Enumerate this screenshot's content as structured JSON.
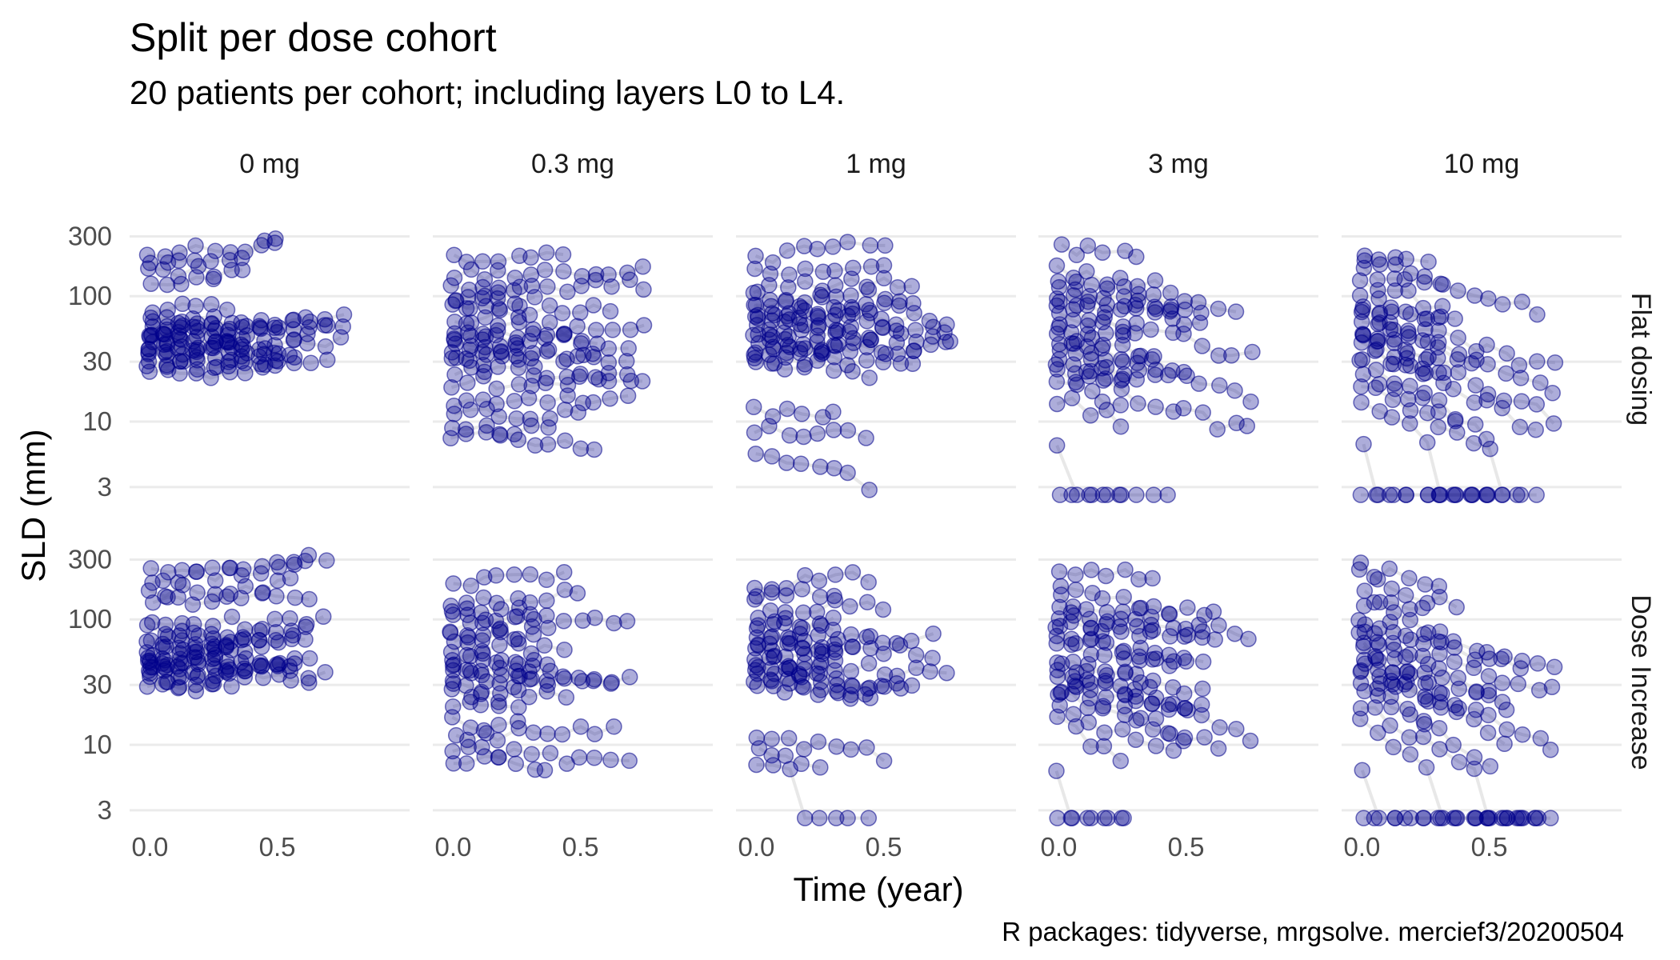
{
  "title": "Split per dose cohort",
  "subtitle": "20 patients per cohort; including layers L0 to L4.",
  "caption": "R packages: tidyverse, mrgsolve. mercief3/20200504",
  "colors": {
    "point": "#00008B",
    "line": "#d9d9d9",
    "grid": "#ebebeb"
  },
  "chart_data": {
    "type": "scatter",
    "facets": {
      "columns": [
        "0 mg",
        "0.3 mg",
        "1 mg",
        "3 mg",
        "10 mg"
      ],
      "rows": [
        "Flat dosing",
        "Dose Increase"
      ]
    },
    "xlabel": "Time (year)",
    "ylabel": "SLD (mm)",
    "x_ticks": [
      0.0,
      0.5
    ],
    "x_tick_labels": [
      "0.0",
      "0.5"
    ],
    "xlim": [
      -0.08,
      1.02
    ],
    "y_scale": "log10",
    "y_ticks": [
      3,
      10,
      30,
      100,
      300
    ],
    "y_tick_labels": [
      "3",
      "10",
      "30",
      "100",
      "300"
    ],
    "ylim": [
      1.9,
      520
    ],
    "grid": true,
    "patient_series_per_panel": 20,
    "visit_times": [
      0.0,
      0.06,
      0.12,
      0.18,
      0.25,
      0.31,
      0.37,
      0.44,
      0.5,
      0.56,
      0.62,
      0.69,
      0.75,
      0.81,
      0.87,
      0.93
    ],
    "panels": [
      {
        "column": "0 mg",
        "row": "Flat dosing",
        "baseline_sld": [
          220,
          180,
          150,
          130,
          80,
          65,
          60,
          55,
          52,
          50,
          48,
          45,
          42,
          40,
          38,
          35,
          33,
          30,
          28,
          25
        ],
        "change_per_year": [
          0.3,
          0.6,
          0.2,
          0.1,
          0.0,
          -0.1,
          0.05,
          0.2,
          -0.05,
          0.1,
          0.0,
          -0.1,
          0.15,
          0.05,
          -0.2,
          0.0,
          0.1,
          -0.05,
          0.05,
          0.0
        ],
        "floor": null
      },
      {
        "column": "0.3 mg",
        "row": "Flat dosing",
        "baseline_sld": [
          190,
          150,
          120,
          100,
          90,
          80,
          65,
          55,
          50,
          45,
          40,
          36,
          33,
          30,
          25,
          20,
          15,
          12,
          9,
          8
        ],
        "change_per_year": [
          0.5,
          0.1,
          0.0,
          0.2,
          0.1,
          -0.1,
          0.3,
          0.0,
          -0.1,
          0.1,
          0.0,
          -0.2,
          0.1,
          0.0,
          -0.1,
          0.2,
          0.1,
          -0.2,
          -0.3,
          -0.4
        ],
        "floor": null
      },
      {
        "column": "1 mg",
        "row": "Flat dosing",
        "baseline_sld": [
          200,
          160,
          120,
          100,
          90,
          80,
          70,
          65,
          60,
          55,
          50,
          45,
          40,
          38,
          35,
          33,
          30,
          12,
          9,
          6
        ],
        "change_per_year": [
          0.6,
          0.3,
          0.1,
          0.0,
          -0.1,
          -0.2,
          0.2,
          0.0,
          -0.1,
          -0.2,
          0.1,
          -0.3,
          0.0,
          -0.2,
          0.1,
          -0.1,
          -0.4,
          -0.2,
          -0.5,
          -1.5
        ],
        "floor": null
      },
      {
        "column": "3 mg",
        "row": "Flat dosing",
        "baseline_sld": [
          250,
          160,
          140,
          120,
          100,
          90,
          80,
          70,
          60,
          50,
          45,
          40,
          35,
          30,
          28,
          25,
          20,
          15,
          6,
          5
        ],
        "change_per_year": [
          -0.6,
          -0.8,
          -1.0,
          -0.7,
          -0.9,
          -0.5,
          -1.2,
          -0.8,
          -0.6,
          -1.0,
          -1.4,
          -0.9,
          -1.1,
          -1.3,
          -0.7,
          -1.5,
          -1.2,
          -1.6,
          -3.0,
          -3.5
        ],
        "floor": 2.6
      },
      {
        "column": "10 mg",
        "row": "Flat dosing",
        "baseline_sld": [
          230,
          220,
          160,
          140,
          100,
          90,
          80,
          70,
          60,
          55,
          50,
          45,
          40,
          35,
          30,
          25,
          20,
          15,
          6,
          5
        ],
        "change_per_year": [
          -1.2,
          -1.6,
          -1.0,
          -1.8,
          -1.4,
          -1.1,
          -2.0,
          -1.3,
          -1.7,
          -2.2,
          -1.5,
          -2.5,
          -1.9,
          -1.2,
          -2.8,
          -2.1,
          -2.4,
          -3.0,
          -3.5,
          -4.0
        ],
        "floor": 2.6
      },
      {
        "column": "0 mg",
        "row": "Dose Increase",
        "baseline_sld": [
          230,
          200,
          160,
          140,
          90,
          80,
          70,
          65,
          60,
          55,
          52,
          50,
          48,
          45,
          42,
          40,
          38,
          35,
          32,
          30
        ],
        "change_per_year": [
          0.4,
          0.5,
          0.3,
          0.2,
          0.1,
          0.0,
          0.05,
          0.2,
          -0.05,
          0.1,
          0.0,
          -0.1,
          0.15,
          0.05,
          -0.2,
          0.0,
          0.1,
          -0.05,
          0.05,
          0.0
        ],
        "floor": null
      },
      {
        "column": "0.3 mg",
        "row": "Dose Increase",
        "baseline_sld": [
          180,
          140,
          120,
          100,
          90,
          80,
          70,
          60,
          50,
          45,
          40,
          36,
          33,
          30,
          25,
          20,
          15,
          12,
          9,
          8
        ],
        "change_per_year": [
          0.6,
          0.2,
          -0.1,
          0.3,
          0.1,
          -0.2,
          0.2,
          0.0,
          -0.3,
          0.1,
          -0.4,
          -0.2,
          0.1,
          -0.5,
          -0.1,
          0.2,
          -0.3,
          0.0,
          -0.4,
          -0.5
        ],
        "floor": null
      },
      {
        "column": "1 mg",
        "row": "Dose Increase",
        "baseline_sld": [
          190,
          160,
          130,
          100,
          90,
          80,
          70,
          65,
          60,
          55,
          50,
          45,
          40,
          38,
          35,
          33,
          30,
          12,
          9,
          7
        ],
        "change_per_year": [
          0.3,
          0.1,
          -0.1,
          -0.3,
          0.0,
          -0.2,
          -0.4,
          0.1,
          -0.2,
          -0.3,
          -0.5,
          -0.1,
          -0.6,
          0.0,
          -0.4,
          -0.7,
          -0.5,
          -0.8,
          -1.2,
          -1.6
        ],
        "floor": 2.6
      },
      {
        "column": "3 mg",
        "row": "Dose Increase",
        "baseline_sld": [
          260,
          180,
          150,
          120,
          100,
          90,
          80,
          70,
          60,
          50,
          45,
          40,
          35,
          30,
          28,
          25,
          20,
          15,
          6,
          5
        ],
        "change_per_year": [
          -0.6,
          -0.9,
          -1.0,
          -0.8,
          -0.7,
          -0.5,
          -1.2,
          -0.9,
          -0.6,
          -1.4,
          -1.0,
          -1.6,
          -1.1,
          -1.8,
          -0.8,
          -1.5,
          -2.0,
          -2.5,
          -3.2,
          -3.8
        ],
        "floor": 2.6
      },
      {
        "column": "10 mg",
        "row": "Dose Increase",
        "baseline_sld": [
          250,
          230,
          160,
          140,
          100,
          90,
          80,
          70,
          60,
          55,
          50,
          45,
          40,
          35,
          30,
          25,
          20,
          15,
          6,
          5
        ],
        "change_per_year": [
          -1.0,
          -1.6,
          -1.2,
          -1.8,
          -1.4,
          -1.1,
          -2.2,
          -1.3,
          -1.9,
          -2.4,
          -1.5,
          -2.6,
          -2.0,
          -1.2,
          -2.8,
          -2.2,
          -2.5,
          -3.1,
          -3.6,
          -4.2
        ],
        "floor": 2.6
      }
    ]
  }
}
